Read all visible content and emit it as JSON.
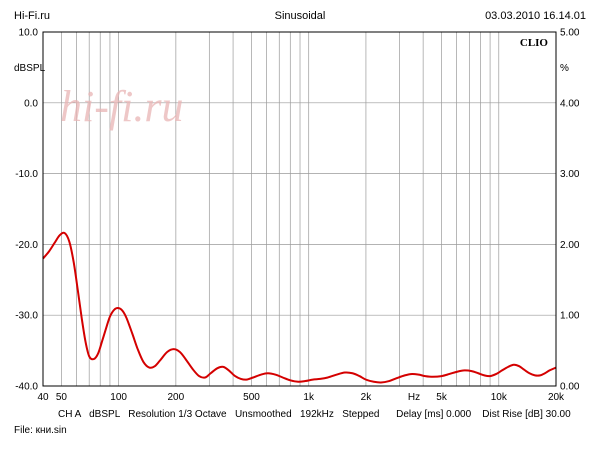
{
  "header": {
    "site": "Hi-Fi.ru",
    "mode": "Sinusoidal",
    "datetime": "03.03.2010 16.14.01"
  },
  "watermark": "hi-fi.ru",
  "brand": "CLIO",
  "footer": {
    "info": "CH A   dBSPL   Resolution 1/3 Octave   Unsmoothed   192kHz   Stepped      Delay [ms] 0.000    Dist Rise [dB] 30.00",
    "file": "File: кни.sin"
  },
  "colors": {
    "curve": "#d40000",
    "grid": "#9a9a9a",
    "watermark": "#e8b4b4"
  },
  "chart_data": {
    "type": "line",
    "title": "",
    "xlabel": "Hz",
    "ylabel": "dBSPL",
    "y2label": "%",
    "xscale": "log",
    "xlim": [
      40,
      20000
    ],
    "ylim": [
      -40,
      10
    ],
    "y2lim": [
      0,
      5
    ],
    "grid": true,
    "x_ticks": [
      {
        "v": 40,
        "label": "40"
      },
      {
        "v": 50,
        "label": "50"
      },
      {
        "v": 100,
        "label": "100"
      },
      {
        "v": 200,
        "label": "200"
      },
      {
        "v": 500,
        "label": "500"
      },
      {
        "v": 1000,
        "label": "1k"
      },
      {
        "v": 2000,
        "label": "2k"
      },
      {
        "v": 5000,
        "label": "5k"
      },
      {
        "v": 10000,
        "label": "10k"
      },
      {
        "v": 20000,
        "label": "20k"
      }
    ],
    "y_ticks": [
      {
        "v": 10,
        "label": "10.0"
      },
      {
        "v": 0,
        "label": "0.0"
      },
      {
        "v": -10,
        "label": "-10.0"
      },
      {
        "v": -20,
        "label": "-20.0"
      },
      {
        "v": -30,
        "label": "-30.0"
      },
      {
        "v": -40,
        "label": "-40.0"
      }
    ],
    "y2_ticks": [
      {
        "v": 5,
        "label": "5.00"
      },
      {
        "v": 4,
        "label": "4.00"
      },
      {
        "v": 3,
        "label": "3.00"
      },
      {
        "v": 2,
        "label": "2.00"
      },
      {
        "v": 1,
        "label": "1.00"
      },
      {
        "v": 0,
        "label": "0.00"
      }
    ],
    "series": [
      {
        "x": [
          40,
          43,
          46,
          49,
          52,
          55,
          58,
          61,
          64,
          67,
          70,
          74,
          78,
          82,
          86,
          90,
          95,
          100,
          105,
          110,
          118,
          126,
          135,
          145,
          155,
          165,
          180,
          195,
          210,
          225,
          245,
          265,
          285,
          305,
          330,
          355,
          380,
          410,
          440,
          470,
          510,
          560,
          610,
          670,
          730,
          800,
          880,
          960,
          1050,
          1150,
          1260,
          1400,
          1550,
          1700,
          1850,
          2000,
          2200,
          2400,
          2650,
          2900,
          3200,
          3500,
          3800,
          4100,
          4500,
          5000,
          5500,
          6000,
          6600,
          7200,
          7800,
          8400,
          9000,
          9700,
          10400,
          11200,
          12000,
          12800,
          13600,
          14500,
          15500,
          16500,
          17500,
          18500,
          20000
        ],
        "values": [
          -22,
          -21,
          -19.8,
          -18.7,
          -18.4,
          -19.6,
          -22.5,
          -26.5,
          -30.5,
          -33.8,
          -35.8,
          -36.2,
          -35.4,
          -33.6,
          -31.8,
          -30.2,
          -29.2,
          -29.0,
          -29.4,
          -30.4,
          -32.6,
          -34.8,
          -36.6,
          -37.4,
          -37.2,
          -36.4,
          -35.2,
          -34.8,
          -35.2,
          -36.2,
          -37.6,
          -38.6,
          -38.8,
          -38.2,
          -37.5,
          -37.3,
          -37.8,
          -38.6,
          -39.0,
          -39.1,
          -38.8,
          -38.4,
          -38.2,
          -38.4,
          -38.8,
          -39.2,
          -39.4,
          -39.3,
          -39.1,
          -39.0,
          -38.8,
          -38.4,
          -38.1,
          -38.2,
          -38.6,
          -39.1,
          -39.4,
          -39.5,
          -39.3,
          -38.9,
          -38.5,
          -38.3,
          -38.4,
          -38.6,
          -38.7,
          -38.6,
          -38.3,
          -38.0,
          -37.8,
          -37.9,
          -38.2,
          -38.5,
          -38.6,
          -38.3,
          -37.8,
          -37.3,
          -37.0,
          -37.2,
          -37.7,
          -38.2,
          -38.5,
          -38.5,
          -38.2,
          -37.8,
          -37.4
        ]
      }
    ]
  }
}
